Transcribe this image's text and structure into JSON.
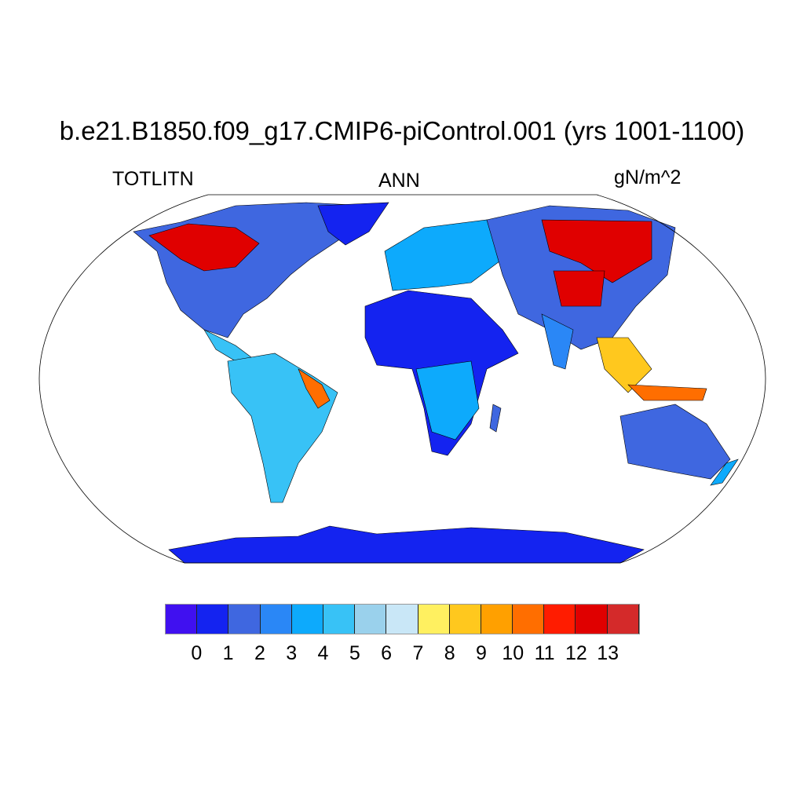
{
  "title": "b.e21.B1850.f09_g17.CMIP6-piControl.001 (yrs 1001-1100)",
  "left_subtitle": "TOTLITN",
  "center_subtitle": "ANN",
  "units": "gN/m^2",
  "colorbar": {
    "colors": [
      "#4010F0",
      "#1423F0",
      "#3F67E0",
      "#2A87F6",
      "#0DAAFC",
      "#38C2F6",
      "#9AD1EC",
      "#C9E7F7",
      "#FFF060",
      "#FFC81E",
      "#FFA000",
      "#FF6E00",
      "#FF1C00",
      "#E00000",
      "#D42A2A"
    ],
    "labels": [
      "0",
      "1",
      "2",
      "3",
      "4",
      "5",
      "6",
      "7",
      "8",
      "9",
      "10",
      "11",
      "12",
      "13"
    ]
  },
  "projection": "Robinson"
}
